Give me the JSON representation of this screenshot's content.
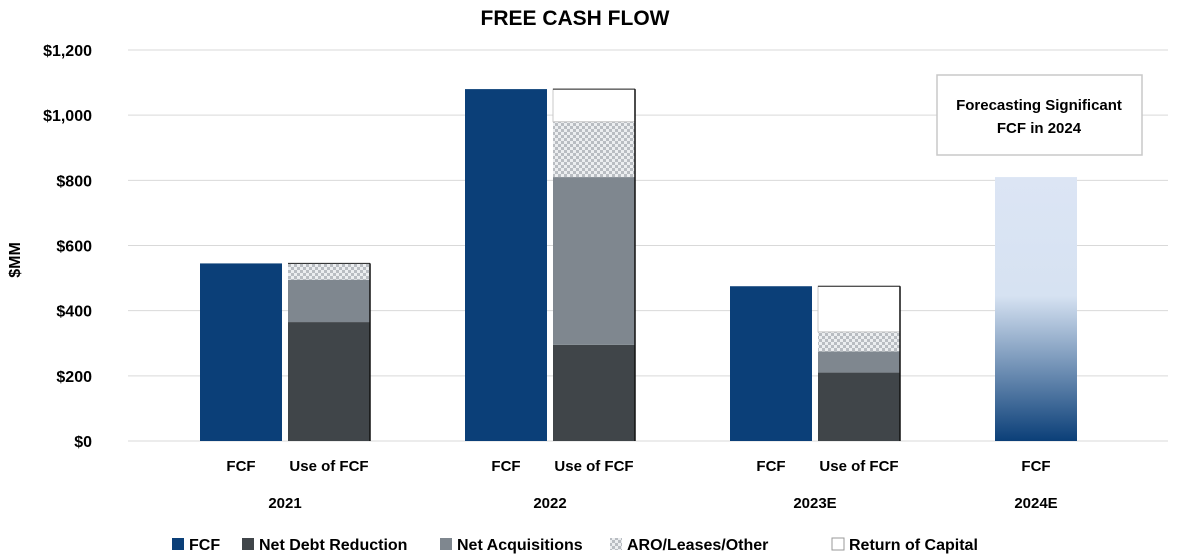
{
  "chart_data": {
    "type": "bar",
    "title": "FREE CASH FLOW",
    "ylabel": "$MM",
    "ylim": [
      0,
      1200
    ],
    "yticks": [
      0,
      200,
      400,
      600,
      800,
      1000,
      1200
    ],
    "ytick_labels": [
      "$0",
      "$200",
      "$400",
      "$600",
      "$800",
      "$1,000",
      "$1,200"
    ],
    "grid": true,
    "legend_position": "bottom",
    "groups": [
      {
        "label": "2021",
        "bars": [
          {
            "label": "FCF",
            "stack": [
              {
                "series": "FCF",
                "value": 545
              }
            ]
          },
          {
            "label": "Use of FCF",
            "stack": [
              {
                "series": "Net Debt Reduction",
                "value": 365
              },
              {
                "series": "Net Acquisitions",
                "value": 130
              },
              {
                "series": "ARO/Leases/Other",
                "value": 50
              }
            ]
          }
        ]
      },
      {
        "label": "2022",
        "bars": [
          {
            "label": "FCF",
            "stack": [
              {
                "series": "FCF",
                "value": 1080
              }
            ]
          },
          {
            "label": "Use of FCF",
            "stack": [
              {
                "series": "Net Debt Reduction",
                "value": 295
              },
              {
                "series": "Net Acquisitions",
                "value": 515
              },
              {
                "series": "ARO/Leases/Other",
                "value": 170
              },
              {
                "series": "Return of Capital",
                "value": 100
              }
            ]
          }
        ]
      },
      {
        "label": "2023E",
        "bars": [
          {
            "label": "FCF",
            "stack": [
              {
                "series": "FCF",
                "value": 475
              }
            ]
          },
          {
            "label": "Use of FCF",
            "stack": [
              {
                "series": "Net Debt Reduction",
                "value": 210
              },
              {
                "series": "Net Acquisitions",
                "value": 65
              },
              {
                "series": "ARO/Leases/Other",
                "value": 60
              },
              {
                "series": "Return of Capital",
                "value": 140
              }
            ]
          }
        ]
      },
      {
        "label": "2024E",
        "bars": [
          {
            "label": "FCF",
            "forecast": true,
            "stack": [
              {
                "series": "FCF",
                "value": 810
              }
            ]
          }
        ]
      }
    ],
    "legend": [
      {
        "name": "FCF",
        "color": "#0b3f78",
        "pattern": "solid"
      },
      {
        "name": "Net Debt Reduction",
        "color": "#404549",
        "pattern": "solid"
      },
      {
        "name": "Net Acquisitions",
        "color": "#7f878f",
        "pattern": "solid"
      },
      {
        "name": "ARO/Leases/Other",
        "color": "#cfd2d6",
        "pattern": "checker"
      },
      {
        "name": "Return of Capital",
        "color": "#ffffff",
        "pattern": "outline"
      }
    ],
    "annotation": "Forecasting Significant FCF in 2024"
  }
}
